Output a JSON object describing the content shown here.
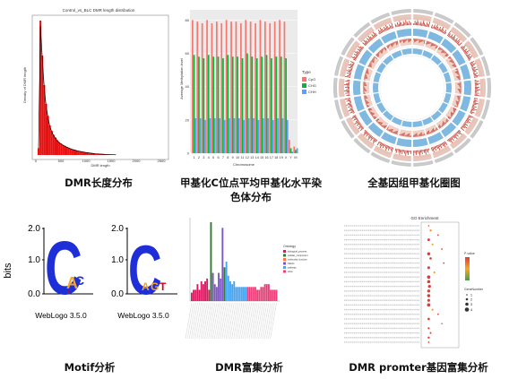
{
  "captions": {
    "dmr_length": "DMR长度分布",
    "methylation_chrom": "甲基化C位点平均甲基化水平染色体分布",
    "circos": "全基因组甲基化圈图",
    "motif": "Motif分析",
    "dmr_enrichment": "DMR富集分析",
    "promoter_enrichment": "DMR promter基因富集分析"
  },
  "hist": {
    "title": "Control_vs_BLC DMR length distribution",
    "xlabel": "DMR length",
    "ylabel": "Density of DMR length",
    "x_ticks": [
      "0",
      "500",
      "1000",
      "1500",
      "2000",
      "2500"
    ],
    "bar_color": "#e81010",
    "chart_data": {
      "type": "bar",
      "values": [
        5,
        100,
        74,
        52,
        38,
        29,
        22,
        18,
        15,
        13,
        11,
        9.5,
        8.5,
        7.5,
        6.8,
        6,
        5.4,
        4.8,
        4.3,
        3.9,
        3.5,
        3.1,
        2.8,
        2.5,
        2.3,
        2,
        1.8,
        1.6,
        1.4,
        1.2,
        1,
        0.9,
        0.8,
        0.7,
        0.6,
        0.5,
        0.4,
        0.35,
        0.3,
        0.25,
        0.2,
        0.15
      ]
    }
  },
  "methyl": {
    "ylabel": "Average Methylation level",
    "xlabel": "Chromosome",
    "y_ticks": [
      "0",
      "20",
      "40",
      "60",
      "80"
    ],
    "legend_title": "Type",
    "colors": {
      "CpG": "#f8766d",
      "CHG": "#00ba38",
      "CHH": "#619cff"
    },
    "chart_data": {
      "type": "bar",
      "ylim": [
        0,
        85
      ],
      "categories": [
        "1",
        "2",
        "3",
        "4",
        "5",
        "6",
        "7",
        "8",
        "9",
        "10",
        "11",
        "12",
        "13",
        "14",
        "15",
        "16",
        "17",
        "18",
        "19",
        "X",
        "Y",
        "M"
      ],
      "series": [
        {
          "name": "CpG",
          "values": [
            80,
            79,
            78,
            80,
            78,
            79,
            78,
            80,
            79,
            79,
            78,
            80,
            79,
            78,
            80,
            79,
            78,
            79,
            80,
            79,
            8,
            4
          ]
        },
        {
          "name": "CHG",
          "values": [
            59,
            58,
            57,
            59,
            58,
            58,
            57,
            59,
            58,
            58,
            57,
            60,
            58,
            57,
            58,
            59,
            57,
            58,
            58,
            57,
            3,
            2
          ]
        },
        {
          "name": "CHH",
          "values": [
            21,
            21,
            20,
            21,
            21,
            21,
            20,
            21,
            21,
            21,
            20,
            21,
            21,
            20,
            21,
            21,
            20,
            21,
            21,
            20,
            1,
            3
          ]
        }
      ]
    }
  },
  "motif": {
    "logo1_footer": "WebLogo 3.5.0",
    "logo2_footer": "WebLogo 3.5.0",
    "bits_label": "bits",
    "y_ticks": [
      "0.0",
      "1.0",
      "2.0"
    ],
    "logo1_letters": {
      "big": "C",
      "tall": "A",
      "top": "C",
      "small": "T"
    },
    "logo2_letters": {
      "big": "C",
      "tall": "A",
      "top": "G",
      "small": "T"
    }
  },
  "enrich": {
    "colors": [
      "#d81b60",
      "#2e7d32",
      "#ff7043",
      "#7e57c2",
      "#42a5f5",
      "#ec407a"
    ],
    "legend": [
      "biological_process",
      "cellular_component",
      "molecular_function",
      "KEGG",
      "pathway",
      "other"
    ],
    "legend_title": "Ontology",
    "chart_data": {
      "type": "bar",
      "values": [
        3,
        4,
        4,
        6,
        4,
        7,
        6,
        7,
        8,
        4,
        28,
        10,
        6,
        5,
        10,
        8,
        26,
        12,
        14,
        9,
        7,
        6,
        7,
        5,
        5,
        5,
        5,
        5,
        5,
        5,
        5,
        5,
        5,
        5,
        4,
        4,
        5,
        5,
        6,
        6,
        6,
        4,
        4,
        4,
        4
      ]
    }
  },
  "dotplot": {
    "title": "GO Enrichment",
    "gradient_title": "P-value",
    "size_title": "GeneNumber",
    "size_values": [
      "1",
      "2",
      "3",
      "4"
    ]
  }
}
